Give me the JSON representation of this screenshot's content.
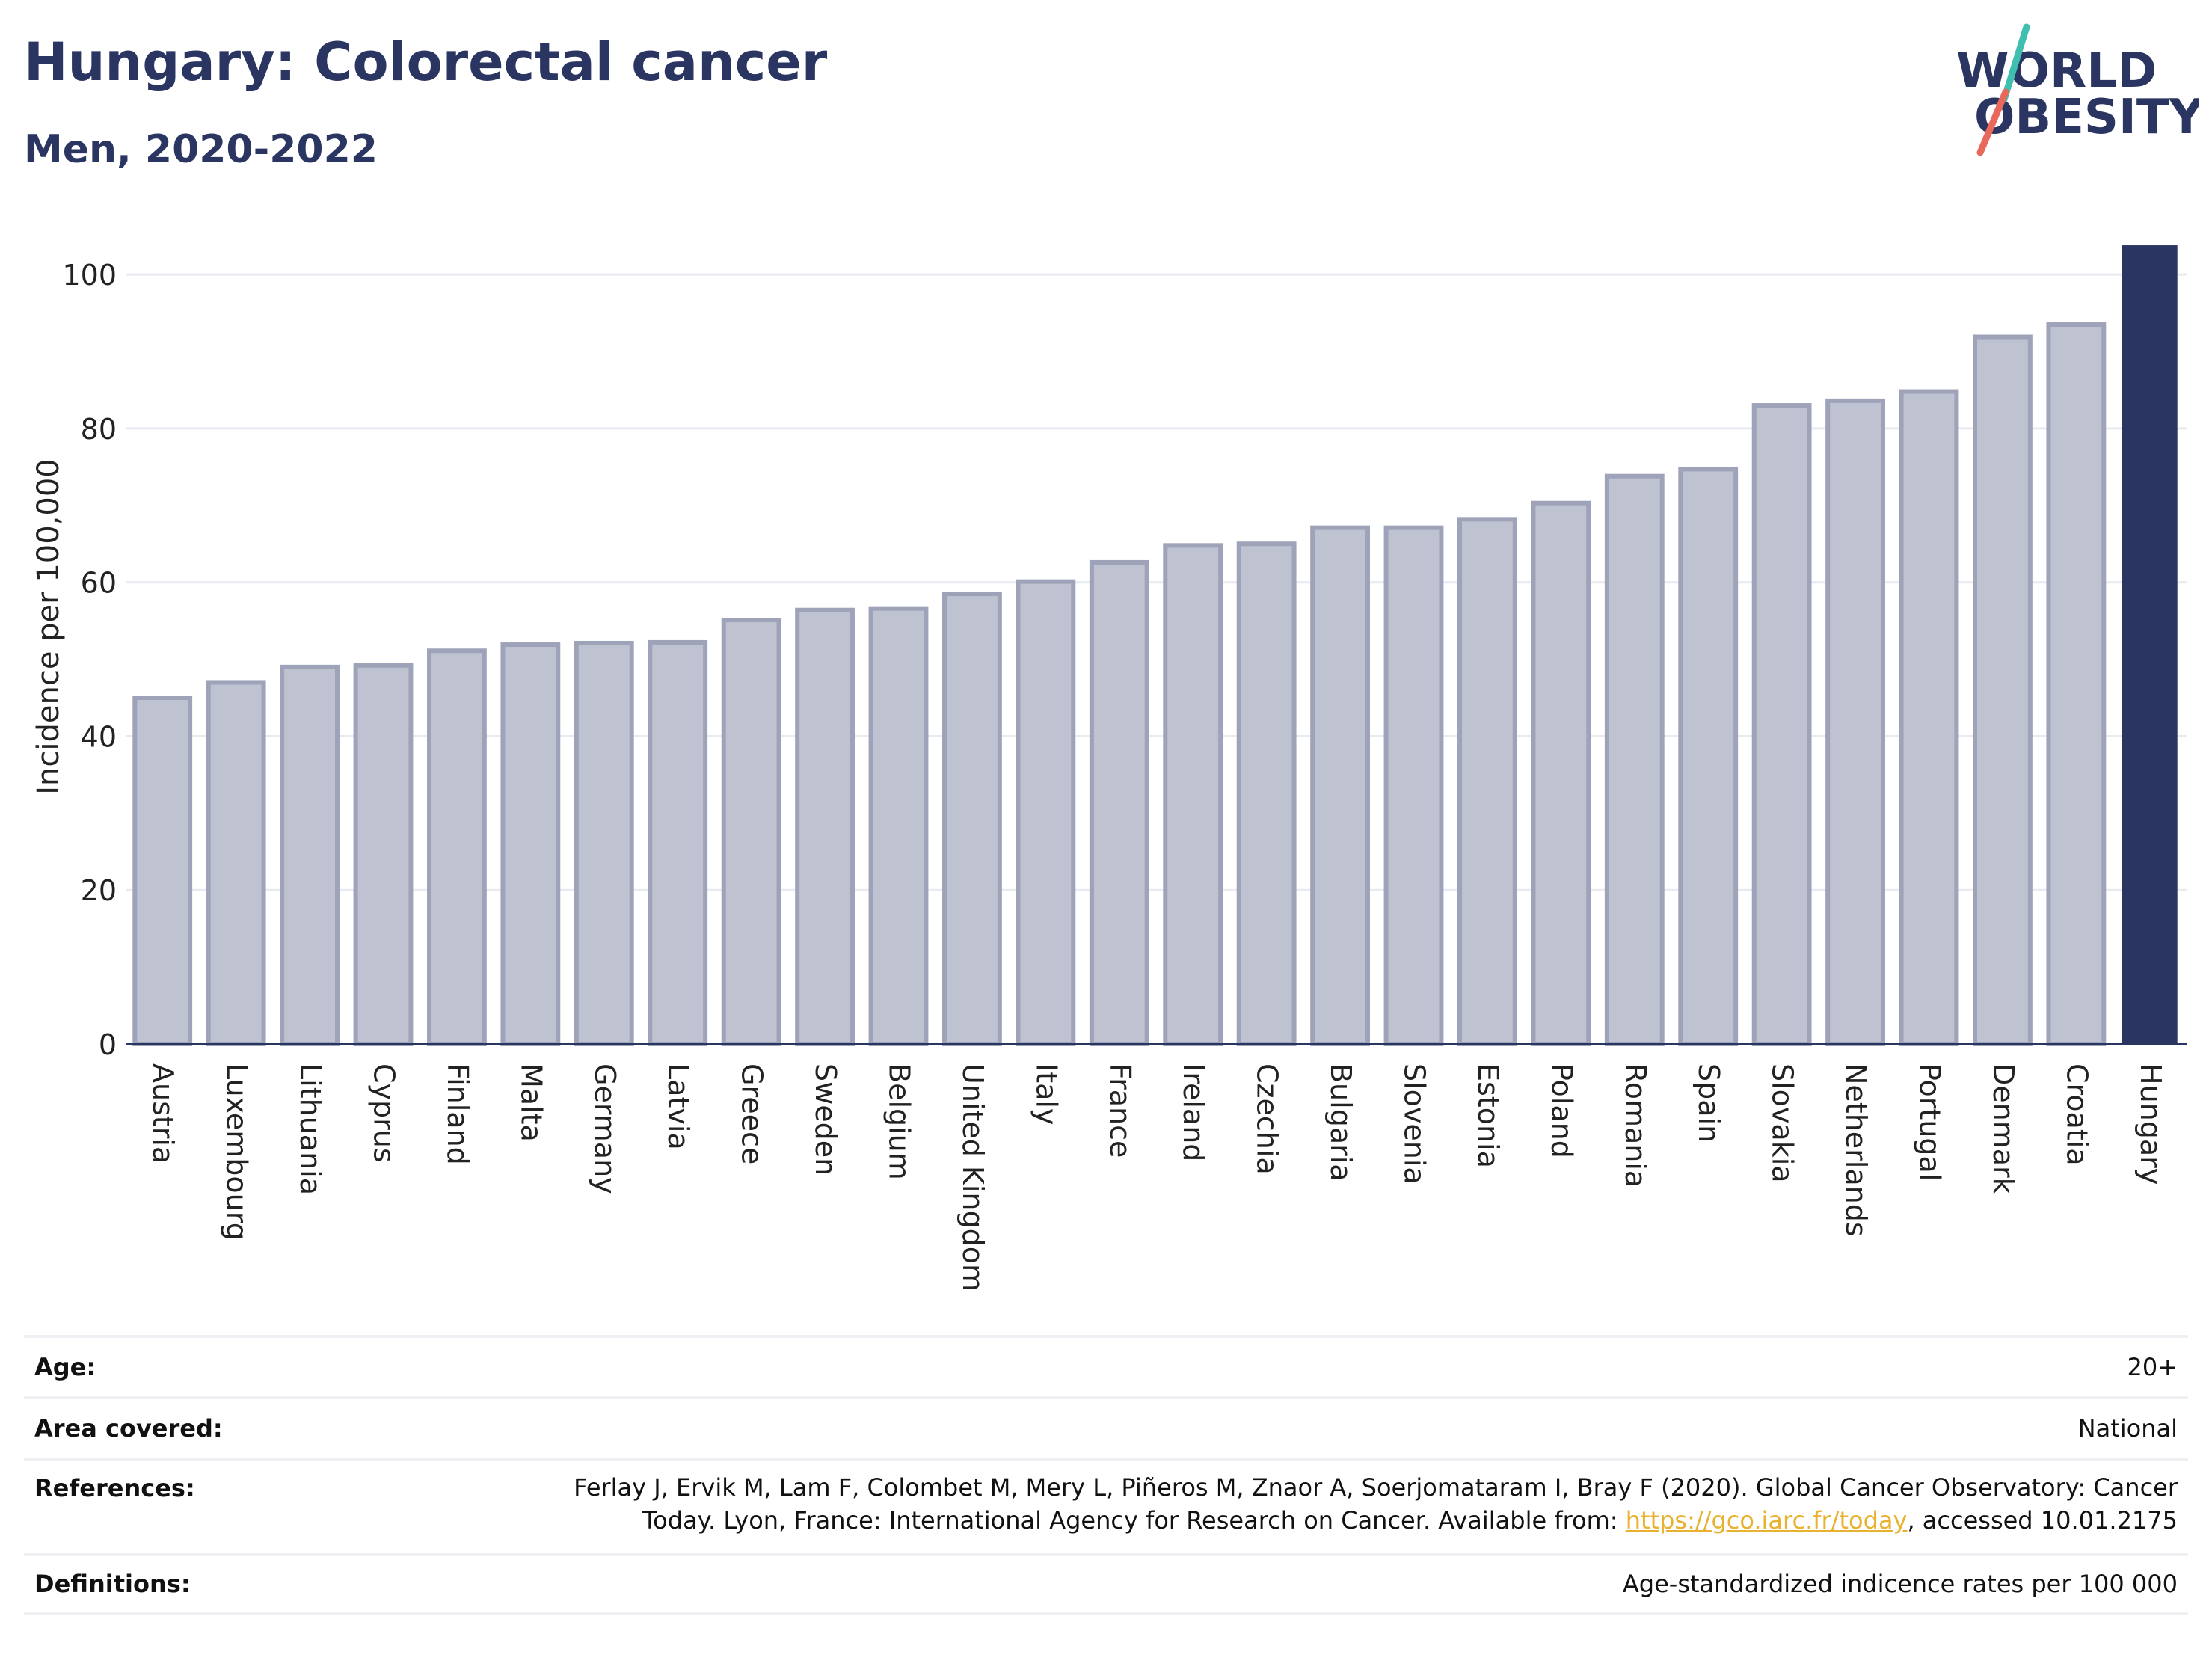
{
  "header": {
    "title": "Hungary: Colorectal cancer",
    "subtitle": "Men, 2020-2022"
  },
  "logo": {
    "line1": "WORLD",
    "line2": "OBESITY",
    "text_color": "#2b3561",
    "accent_teal": "#3fbfb0",
    "accent_red": "#e8685c"
  },
  "chart_data": {
    "type": "bar",
    "title": "Hungary: Colorectal cancer",
    "subtitle": "Men, 2020-2022",
    "ylabel": "Incidence per 100,000",
    "ylim": [
      0,
      104
    ],
    "yticks": [
      0,
      20,
      40,
      60,
      80,
      100
    ],
    "categories": [
      "Austria",
      "Luxembourg",
      "Lithuania",
      "Cyprus",
      "Finland",
      "Malta",
      "Germany",
      "Latvia",
      "Greece",
      "Sweden",
      "Belgium",
      "United Kingdom",
      "Italy",
      "France",
      "Ireland",
      "Czechia",
      "Bulgaria",
      "Slovenia",
      "Estonia",
      "Poland",
      "Romania",
      "Spain",
      "Slovakia",
      "Netherlands",
      "Portugal",
      "Denmark",
      "Croatia",
      "Hungary"
    ],
    "values": [
      45,
      47,
      49,
      49.2,
      51.1,
      51.9,
      52.1,
      52.2,
      55.1,
      56.4,
      56.6,
      58.5,
      60.1,
      62.6,
      64.8,
      65,
      67.1,
      67.1,
      68.2,
      70.3,
      73.8,
      74.7,
      83,
      83.6,
      84.8,
      91.9,
      93.5,
      103.8
    ],
    "highlight": "Hungary",
    "grid": true,
    "colors": {
      "bar_fill": "#bfc2d0",
      "bar_stroke": "#9ea3b9",
      "highlight_fill": "#2b3561",
      "grid": "#e8eaf0",
      "axis": "#2b3561"
    }
  },
  "info_table": {
    "age_label": "Age:",
    "age_value": "20+",
    "area_label": "Area covered:",
    "area_value": "National",
    "references_label": "References:",
    "references_line1": "Ferlay J, Ervik M, Lam F, Colombet M, Mery L, Piñeros M, Znaor A, Soerjomataram I, Bray F (2020). Global Cancer Observatory: Cancer",
    "references_line2_pre": "Today. Lyon, France: International Agency for Research on Cancer. Available from: ",
    "references_link": "https://gco.iarc.fr/today",
    "references_line2_post": ", accessed 10.01.2175",
    "definitions_label": "Definitions:",
    "definitions_value": "Age-standardized indicence rates per 100 000"
  }
}
